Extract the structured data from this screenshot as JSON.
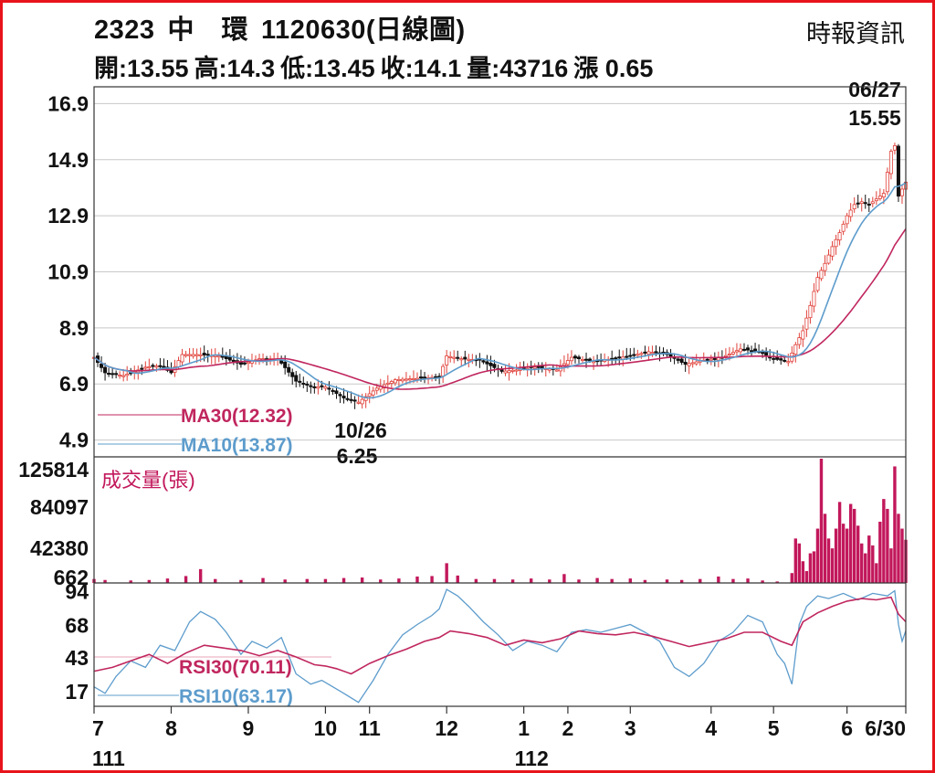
{
  "header": {
    "code": "2323",
    "name": "中　環",
    "date_label": "1120630(日線圖)",
    "source": "時報資訊",
    "ohlc": {
      "open": "開:13.55",
      "high": "高:14.3",
      "low": "低:13.45",
      "close": "收:14.1",
      "volume": "量:43716",
      "change": "漲 0.65"
    }
  },
  "colors": {
    "frame": "#e8141c",
    "ma30": "#c0265e",
    "ma10": "#5d9ccc",
    "volume": "#c2185b",
    "candle_up": "#e0413a",
    "candle_down": "#111111",
    "grid": "#c8c8c8"
  },
  "chart_data": [
    {
      "type": "candlestick",
      "panel": "price",
      "ylim": [
        4.3,
        17.5
      ],
      "y_ticks": [
        "16.9",
        "14.9",
        "12.9",
        "10.9",
        "8.9",
        "6.9",
        "4.9"
      ],
      "y_tick_values": [
        16.9,
        14.9,
        12.9,
        10.9,
        8.9,
        6.9,
        4.9
      ],
      "x_ticks": [
        "7",
        "8",
        "9",
        "10",
        "11",
        "12",
        "1",
        "2",
        "3",
        "4",
        "5",
        "6",
        "6/30"
      ],
      "x_tick_days": [
        0,
        21,
        42,
        63,
        75,
        96,
        117,
        129,
        146,
        168,
        185,
        205,
        221
      ],
      "year_labels": [
        "111",
        "112"
      ],
      "year_label_days": [
        0,
        117
      ],
      "legend": [
        "MA30(12.32)",
        "MA10(13.87)"
      ],
      "annotations": [
        {
          "date": "06/27",
          "value": "15.55",
          "day": 218,
          "price": 15.55
        },
        {
          "date": "10/26",
          "value": "6.25",
          "day": 72,
          "price": 6.25
        }
      ],
      "close_series": {
        "days": [
          0,
          3,
          8,
          14,
          18,
          21,
          24,
          28,
          34,
          40,
          45,
          50,
          55,
          60,
          63,
          68,
          72,
          77,
          82,
          88,
          94,
          96,
          100,
          105,
          111,
          115,
          120,
          126,
          130,
          136,
          141,
          146,
          151,
          156,
          161,
          166,
          171,
          176,
          181,
          185,
          189,
          191,
          193,
          195,
          197,
          199,
          201,
          203,
          205,
          207,
          209,
          211,
          213,
          215,
          217,
          218,
          219,
          221
        ],
        "close": [
          7.85,
          7.3,
          7.2,
          7.5,
          7.55,
          7.3,
          7.95,
          7.95,
          7.9,
          7.6,
          7.8,
          7.8,
          7.0,
          6.8,
          6.8,
          6.4,
          6.25,
          6.75,
          7.05,
          7.1,
          7.15,
          7.9,
          7.8,
          7.75,
          7.35,
          7.4,
          7.5,
          7.4,
          7.85,
          7.7,
          7.8,
          7.9,
          8.05,
          7.95,
          7.6,
          7.75,
          7.85,
          8.15,
          8.05,
          7.8,
          7.7,
          8.3,
          8.8,
          9.7,
          10.7,
          11.2,
          11.8,
          12.3,
          12.9,
          13.3,
          13.4,
          13.3,
          13.5,
          13.7,
          15.2,
          15.4,
          13.6,
          14.1
        ]
      }
    },
    {
      "type": "bar",
      "panel": "volume",
      "label": "成交量(張)",
      "y_ticks": [
        "125814",
        "84097",
        "42380",
        "662"
      ],
      "y_tick_values": [
        125814,
        84097,
        42380,
        662
      ],
      "ylim": [
        0,
        125814
      ],
      "points": [
        [
          0,
          4000
        ],
        [
          3,
          3000
        ],
        [
          10,
          2500
        ],
        [
          15,
          3000
        ],
        [
          20,
          4500
        ],
        [
          25,
          7000
        ],
        [
          29,
          14000
        ],
        [
          33,
          4000
        ],
        [
          40,
          3000
        ],
        [
          46,
          5000
        ],
        [
          52,
          3500
        ],
        [
          58,
          4000
        ],
        [
          63,
          4000
        ],
        [
          68,
          5000
        ],
        [
          73,
          5500
        ],
        [
          78,
          3500
        ],
        [
          83,
          4500
        ],
        [
          88,
          6500
        ],
        [
          92,
          7000
        ],
        [
          96,
          20000
        ],
        [
          99,
          7500
        ],
        [
          104,
          4000
        ],
        [
          109,
          4000
        ],
        [
          114,
          3500
        ],
        [
          119,
          4500
        ],
        [
          124,
          3500
        ],
        [
          128,
          9000
        ],
        [
          132,
          3500
        ],
        [
          137,
          5000
        ],
        [
          141,
          4000
        ],
        [
          146,
          4500
        ],
        [
          150,
          3000
        ],
        [
          156,
          3500
        ],
        [
          160,
          3000
        ],
        [
          165,
          4000
        ],
        [
          170,
          6500
        ],
        [
          174,
          4000
        ],
        [
          178,
          4500
        ],
        [
          182,
          2500
        ],
        [
          186,
          1500
        ],
        [
          190,
          10000
        ],
        [
          191,
          45000
        ],
        [
          192,
          40000
        ],
        [
          193,
          22000
        ],
        [
          194,
          12000
        ],
        [
          195,
          30000
        ],
        [
          196,
          32000
        ],
        [
          197,
          55000
        ],
        [
          198,
          125814
        ],
        [
          199,
          70000
        ],
        [
          200,
          45000
        ],
        [
          201,
          35000
        ],
        [
          202,
          55000
        ],
        [
          203,
          82000
        ],
        [
          204,
          60000
        ],
        [
          205,
          55000
        ],
        [
          206,
          80000
        ],
        [
          207,
          75000
        ],
        [
          208,
          58000
        ],
        [
          209,
          40000
        ],
        [
          210,
          30000
        ],
        [
          211,
          48000
        ],
        [
          212,
          38000
        ],
        [
          213,
          20000
        ],
        [
          214,
          62000
        ],
        [
          215,
          85000
        ],
        [
          216,
          75000
        ],
        [
          217,
          35000
        ],
        [
          218,
          118000
        ],
        [
          219,
          70000
        ],
        [
          220,
          55000
        ],
        [
          221,
          43716
        ]
      ]
    },
    {
      "type": "line",
      "panel": "rsi",
      "y_ticks": [
        "94",
        "68",
        "43",
        "17"
      ],
      "y_tick_values": [
        94,
        68,
        43,
        17
      ],
      "ylim": [
        5,
        100
      ],
      "legend": [
        "RSI30(70.11)",
        "RSI10(63.17)"
      ],
      "series": [
        {
          "name": "RSI30(70.11)",
          "x": [
            0,
            5,
            10,
            15,
            20,
            25,
            30,
            35,
            40,
            45,
            50,
            55,
            60,
            63,
            66,
            70,
            75,
            80,
            85,
            90,
            94,
            97,
            102,
            107,
            112,
            117,
            122,
            127,
            132,
            137,
            142,
            147,
            152,
            157,
            162,
            167,
            172,
            177,
            182,
            187,
            190,
            193,
            197,
            201,
            205,
            209,
            213,
            217,
            219,
            221
          ],
          "y": [
            32,
            35,
            40,
            45,
            38,
            46,
            52,
            50,
            48,
            44,
            48,
            43,
            37,
            36,
            34,
            30,
            38,
            44,
            49,
            55,
            58,
            63,
            61,
            58,
            52,
            56,
            54,
            57,
            63,
            61,
            60,
            62,
            59,
            55,
            51,
            54,
            57,
            62,
            62,
            55,
            52,
            70,
            77,
            82,
            86,
            88,
            87,
            89,
            76,
            70.11
          ]
        },
        {
          "name": "RSI10(63.17)",
          "x": [
            0,
            3,
            6,
            10,
            14,
            18,
            22,
            26,
            29,
            33,
            36,
            40,
            43,
            47,
            51,
            55,
            59,
            62,
            65,
            68,
            72,
            76,
            80,
            84,
            88,
            92,
            94,
            96,
            99,
            102,
            106,
            110,
            114,
            118,
            122,
            126,
            130,
            134,
            138,
            142,
            146,
            150,
            154,
            158,
            162,
            166,
            170,
            174,
            178,
            182,
            186,
            188,
            190,
            192,
            194,
            197,
            200,
            204,
            208,
            212,
            216,
            218,
            219,
            220,
            221
          ],
          "y": [
            20,
            15,
            28,
            40,
            35,
            52,
            48,
            70,
            78,
            72,
            62,
            45,
            55,
            50,
            58,
            30,
            22,
            25,
            20,
            15,
            8,
            25,
            45,
            60,
            68,
            75,
            80,
            95,
            90,
            82,
            70,
            60,
            48,
            55,
            52,
            47,
            62,
            64,
            62,
            65,
            68,
            62,
            55,
            35,
            28,
            38,
            55,
            62,
            75,
            70,
            45,
            38,
            22,
            68,
            82,
            90,
            88,
            92,
            87,
            92,
            90,
            94,
            68,
            55,
            63.17
          ]
        }
      ]
    }
  ]
}
